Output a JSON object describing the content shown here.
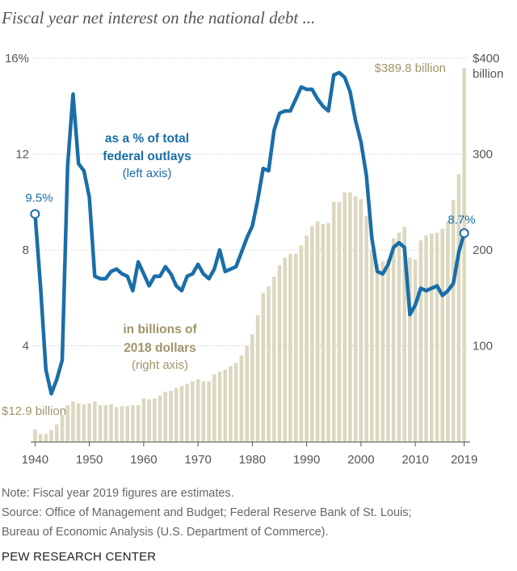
{
  "title": "Fiscal year net interest on the national debt ...",
  "chart_data": {
    "type": "bar+line",
    "x": [
      1940,
      1941,
      1942,
      1943,
      1944,
      1945,
      1946,
      1947,
      1948,
      1949,
      1950,
      1951,
      1952,
      1953,
      1954,
      1955,
      1956,
      1957,
      1958,
      1959,
      1960,
      1961,
      1962,
      1963,
      1964,
      1965,
      1966,
      1967,
      1968,
      1969,
      1970,
      1971,
      1972,
      1973,
      1974,
      1975,
      1976,
      1977,
      1978,
      1979,
      1980,
      1981,
      1982,
      1983,
      1984,
      1985,
      1986,
      1987,
      1988,
      1989,
      1990,
      1991,
      1992,
      1993,
      1994,
      1995,
      1996,
      1997,
      1998,
      1999,
      2000,
      2001,
      2002,
      2003,
      2004,
      2005,
      2006,
      2007,
      2008,
      2009,
      2010,
      2011,
      2012,
      2013,
      2014,
      2015,
      2016,
      2017,
      2018,
      2019
    ],
    "series": [
      {
        "name": "in billions of 2018 dollars",
        "axis": "right",
        "chart_type": "bar",
        "values": [
          12.9,
          8,
          8,
          12,
          18,
          28,
          38,
          42,
          40,
          39,
          40,
          42,
          38,
          38,
          39,
          36,
          37,
          37,
          38,
          38,
          45,
          44,
          45,
          48,
          52,
          53,
          56,
          58,
          60,
          63,
          65,
          63,
          63,
          70,
          73,
          75,
          79,
          82,
          90,
          100,
          112,
          132,
          155,
          162,
          172,
          184,
          192,
          196,
          196,
          205,
          215,
          225,
          230,
          227,
          228,
          250,
          250,
          260,
          260,
          256,
          253,
          235,
          200,
          185,
          188,
          190,
          212,
          218,
          224,
          192,
          190,
          210,
          215,
          217,
          218,
          222,
          230,
          252,
          279,
          389.8
        ]
      },
      {
        "name": "as a % of total federal outlays",
        "axis": "left",
        "chart_type": "line",
        "values": [
          9.5,
          6.5,
          3.0,
          2.0,
          2.6,
          3.4,
          11.5,
          14.5,
          11.6,
          11.3,
          10.2,
          6.9,
          6.8,
          6.8,
          7.1,
          7.2,
          7.0,
          6.9,
          6.3,
          7.5,
          7.0,
          6.5,
          6.9,
          6.9,
          7.3,
          7.0,
          6.5,
          6.3,
          6.9,
          7.0,
          7.4,
          7.0,
          6.8,
          7.2,
          8.0,
          7.1,
          7.2,
          7.3,
          7.9,
          8.5,
          9.0,
          10.1,
          11.4,
          11.3,
          13.0,
          13.7,
          13.8,
          13.8,
          14.3,
          14.8,
          14.7,
          14.7,
          14.3,
          14.0,
          13.8,
          15.3,
          15.4,
          15.2,
          14.6,
          13.4,
          12.5,
          11.1,
          8.5,
          7.1,
          7.0,
          7.4,
          8.1,
          8.3,
          8.1,
          5.3,
          5.7,
          6.4,
          6.3,
          6.4,
          6.5,
          6.1,
          6.3,
          6.6,
          7.9,
          8.7
        ]
      }
    ],
    "left_axis": {
      "ticks": [
        "16%",
        "12",
        "8",
        "4"
      ],
      "ylim": [
        0,
        16
      ]
    },
    "right_axis": {
      "ticks": [
        "$400",
        "300",
        "200",
        "100"
      ],
      "ylim": [
        0,
        400
      ]
    },
    "x_ticks": [
      "1940",
      "1950",
      "1960",
      "1970",
      "1980",
      "1990",
      "2000",
      "2010",
      "2019"
    ],
    "xlim": [
      1939.5,
      2019.5
    ],
    "grid": true,
    "annotations": {
      "pct_start": "9.5%",
      "pct_end": "8.7%",
      "billions_start": "$12.9 billion",
      "billions_end": "$389.8 billion",
      "right_unit": "billion",
      "pct_label_line1": "as a % of total",
      "pct_label_line2": "federal outlays",
      "pct_label_line3": "(left axis)",
      "bil_label_line1": "in billions of",
      "bil_label_line2": "2018 dollars",
      "bil_label_line3": "(right axis)"
    },
    "colors": {
      "bars": "#dcd8c0",
      "line": "#1a6ea8",
      "bar_label": "#a0956a",
      "grid": "#c9c9c9",
      "axis": "#555555"
    }
  },
  "note": "Note: Fiscal year 2019 figures are estimates.",
  "source_line1": "Source: Office of Management and Budget; Federal Reserve Bank of St. Louis;",
  "source_line2": "Bureau of Economic Analysis (U.S. Department of Commerce).",
  "credit": "PEW RESEARCH CENTER"
}
